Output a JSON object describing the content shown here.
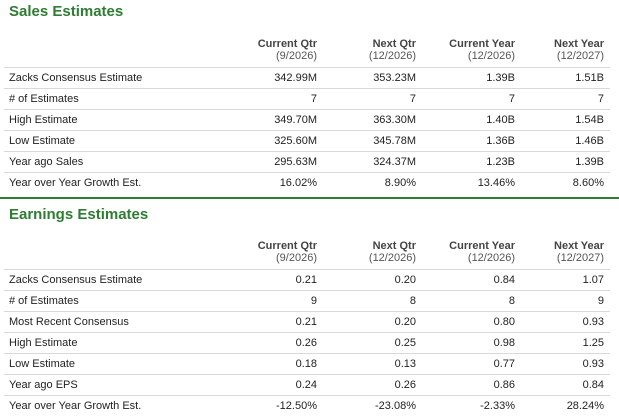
{
  "sales": {
    "title": "Sales Estimates",
    "columns": [
      {
        "label": "Current Qtr",
        "sub": "(9/2026)"
      },
      {
        "label": "Next Qtr",
        "sub": "(12/2026)"
      },
      {
        "label": "Current Year",
        "sub": "(12/2026)"
      },
      {
        "label": "Next Year",
        "sub": "(12/2027)"
      }
    ],
    "rows": [
      {
        "label": "Zacks Consensus Estimate",
        "values": [
          "342.99M",
          "353.23M",
          "1.39B",
          "1.51B"
        ]
      },
      {
        "label": "# of Estimates",
        "values": [
          "7",
          "7",
          "7",
          "7"
        ]
      },
      {
        "label": "High Estimate",
        "values": [
          "349.70M",
          "363.30M",
          "1.40B",
          "1.54B"
        ]
      },
      {
        "label": "Low Estimate",
        "values": [
          "325.60M",
          "345.78M",
          "1.36B",
          "1.46B"
        ]
      },
      {
        "label": "Year ago Sales",
        "values": [
          "295.63M",
          "324.37M",
          "1.23B",
          "1.39B"
        ]
      },
      {
        "label": "Year over Year Growth Est.",
        "values": [
          "16.02%",
          "8.90%",
          "13.46%",
          "8.60%"
        ]
      }
    ]
  },
  "earnings": {
    "title": "Earnings Estimates",
    "columns": [
      {
        "label": "Current Qtr",
        "sub": "(9/2026)"
      },
      {
        "label": "Next Qtr",
        "sub": "(12/2026)"
      },
      {
        "label": "Current Year",
        "sub": "(12/2026)"
      },
      {
        "label": "Next Year",
        "sub": "(12/2027)"
      }
    ],
    "rows": [
      {
        "label": "Zacks Consensus Estimate",
        "values": [
          "0.21",
          "0.20",
          "0.84",
          "1.07"
        ]
      },
      {
        "label": "# of Estimates",
        "values": [
          "9",
          "8",
          "8",
          "9"
        ]
      },
      {
        "label": "Most Recent Consensus",
        "values": [
          "0.21",
          "0.20",
          "0.80",
          "0.93"
        ]
      },
      {
        "label": "High Estimate",
        "values": [
          "0.26",
          "0.25",
          "0.98",
          "1.25"
        ]
      },
      {
        "label": "Low Estimate",
        "values": [
          "0.18",
          "0.13",
          "0.77",
          "0.93"
        ]
      },
      {
        "label": "Year ago EPS",
        "values": [
          "0.24",
          "0.26",
          "0.86",
          "0.84"
        ]
      },
      {
        "label": "Year over Year Growth Est.",
        "values": [
          "-12.50%",
          "-23.08%",
          "-2.33%",
          "28.24%"
        ]
      }
    ]
  },
  "colors": {
    "heading": "#2e7d32",
    "row_border": "#d9d9d9"
  }
}
